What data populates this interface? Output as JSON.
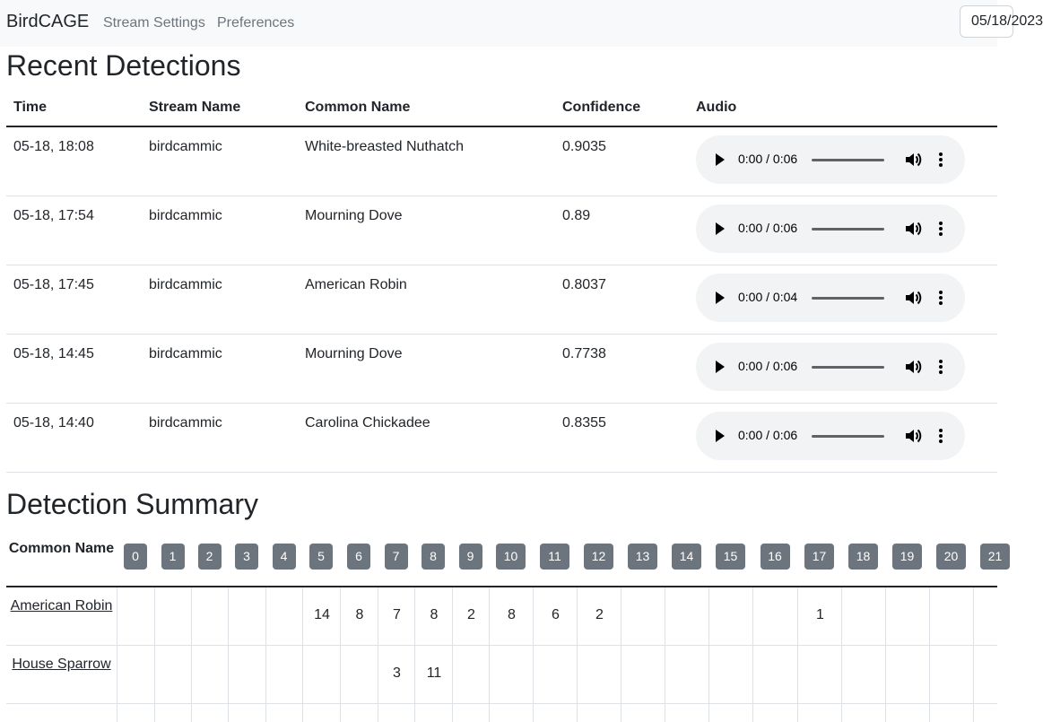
{
  "nav": {
    "brand": "BirdCAGE",
    "links": [
      "Stream Settings",
      "Preferences"
    ],
    "date_value": "05/18/2023"
  },
  "recent": {
    "title": "Recent Detections",
    "headers": [
      "Time",
      "Stream Name",
      "Common Name",
      "Confidence",
      "Audio"
    ],
    "rows": [
      {
        "time": "05-18, 18:08",
        "stream": "birdcammic",
        "common": "White-breasted Nuthatch",
        "confidence": "0.9035",
        "audio_time": "0:00 / 0:06"
      },
      {
        "time": "05-18, 17:54",
        "stream": "birdcammic",
        "common": "Mourning Dove",
        "confidence": "0.89",
        "audio_time": "0:00 / 0:06"
      },
      {
        "time": "05-18, 17:45",
        "stream": "birdcammic",
        "common": "American Robin",
        "confidence": "0.8037",
        "audio_time": "0:00 / 0:04"
      },
      {
        "time": "05-18, 14:45",
        "stream": "birdcammic",
        "common": "Mourning Dove",
        "confidence": "0.7738",
        "audio_time": "0:00 / 0:06"
      },
      {
        "time": "05-18, 14:40",
        "stream": "birdcammic",
        "common": "Carolina Chickadee",
        "confidence": "0.8355",
        "audio_time": "0:00 / 0:06"
      }
    ]
  },
  "summary": {
    "title": "Detection Summary",
    "name_header": "Common Name",
    "hours": [
      "0",
      "1",
      "2",
      "3",
      "4",
      "5",
      "6",
      "7",
      "8",
      "9",
      "10",
      "11",
      "12",
      "13",
      "14",
      "15",
      "16",
      "17",
      "18",
      "19",
      "20",
      "21"
    ],
    "rows": [
      {
        "name": "American Robin",
        "counts": [
          "",
          "",
          "",
          "",
          "",
          "14",
          "8",
          "7",
          "8",
          "2",
          "8",
          "6",
          "2",
          "",
          "",
          "",
          "",
          "1",
          "",
          "",
          "",
          ""
        ]
      },
      {
        "name": "House Sparrow",
        "counts": [
          "",
          "",
          "",
          "",
          "",
          "",
          "",
          "3",
          "11",
          "",
          "",
          "",
          "",
          "",
          "",
          "",
          "",
          "",
          "",
          "",
          "",
          ""
        ]
      }
    ]
  },
  "colors": {
    "badge": "#6c757d",
    "navbar_bg": "#f8f9fa",
    "audio_bg": "#f1f3f4"
  }
}
